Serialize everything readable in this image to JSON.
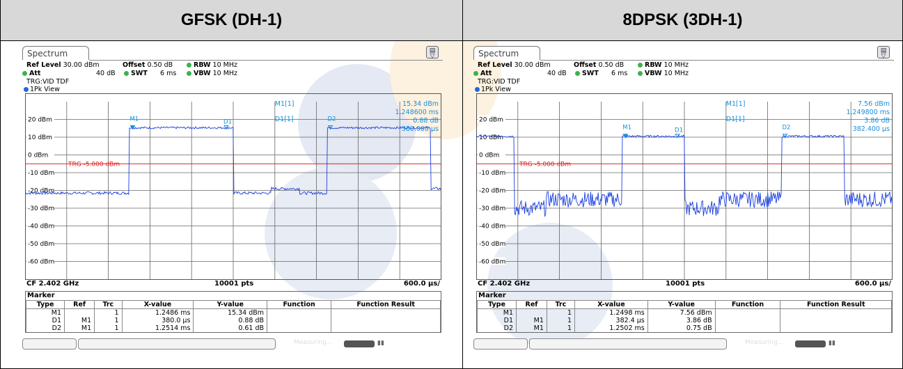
{
  "headers": [
    "GFSK (DH-1)",
    "8DPSK (3DH-1)"
  ],
  "colors": {
    "trace": "#1a3fe0",
    "marker": "#1a8fd8",
    "trigger": "#e02020",
    "header_bg": "#d8d8d8"
  },
  "panels": [
    {
      "tab": "Spectrum",
      "ref_label": "Ref Level",
      "ref_value": "30.00 dBm",
      "offset_label": "Offset",
      "offset_value": "0.50 dB",
      "rbw_label": "RBW",
      "rbw_value": "10 MHz",
      "att_label": "Att",
      "att_value": "40 dB",
      "swt_label": "SWT",
      "swt_value": "6 ms",
      "vbw_label": "VBW",
      "vbw_value": "10 MHz",
      "trg": "TRG:VID TDF",
      "view": "1Pk View",
      "y_labels": [
        "20 dBm",
        "10 dBm",
        "0 dBm",
        "-10 dBm",
        "-20 dBm",
        "-30 dBm",
        "-40 dBm",
        "-50 dBm",
        "-60 dBm"
      ],
      "trg_line": "TRG -5.000 dBm",
      "m1_label": "M1[1]",
      "m1_val": "15.34 dBm",
      "m1_time": "1.248600 ms",
      "d1_label": "D1[1]",
      "d1_val": "0.88 dB",
      "d1_time": "380.000 µs",
      "markers": [
        "M1",
        "D1",
        "D2"
      ],
      "cf": "CF 2.402 GHz",
      "pts": "10001 pts",
      "span": "600.0 µs/",
      "marker_title": "Marker",
      "cols": [
        "Type",
        "Ref",
        "Trc",
        "X-value",
        "Y-value",
        "Function",
        "Function Result"
      ],
      "rows": [
        [
          "M1",
          "",
          "1",
          "1.2486 ms",
          "15.34 dBm",
          "",
          ""
        ],
        [
          "D1",
          "M1",
          "1",
          "380.0 µs",
          "0.88 dB",
          "",
          ""
        ],
        [
          "D2",
          "M1",
          "1",
          "1.2514 ms",
          "0.61 dB",
          "",
          ""
        ]
      ],
      "trace": {
        "high": 15.3,
        "low": -21.5,
        "noise": 0.8,
        "pulses": [
          [
            1.5,
            3.0
          ],
          [
            4.35,
            5.85
          ],
          [
            7.3,
            8.8
          ],
          [
            9.6,
            11.1
          ]
        ],
        "bumps": [
          [
            3.55,
            3.95
          ],
          [
            5.5,
            6.0
          ],
          [
            7.75,
            8.25
          ],
          [
            10.7,
            11.1
          ]
        ],
        "bump_level": -19
      }
    },
    {
      "tab": "Spectrum",
      "ref_label": "Ref Level",
      "ref_value": "30.00 dBm",
      "offset_label": "Offset",
      "offset_value": "0.50 dB",
      "rbw_label": "RBW",
      "rbw_value": "10 MHz",
      "att_label": "Att",
      "att_value": "40 dB",
      "swt_label": "SWT",
      "swt_value": "6 ms",
      "vbw_label": "VBW",
      "vbw_value": "10 MHz",
      "trg": "TRG:VID TDF",
      "view": "1Pk View",
      "y_labels": [
        "20 dBm",
        "10 dBm",
        "0 dBm",
        "-10 dBm",
        "-20 dBm",
        "-30 dBm",
        "-40 dBm",
        "-50 dBm",
        "-60 dBm"
      ],
      "trg_line": "TRG -5.000 dBm",
      "m1_label": "M1[1]",
      "m1_val": "7.56 dBm",
      "m1_time": "1.249800 ms",
      "d1_label": "D1[1]",
      "d1_val": "3.86 dB",
      "d1_time": "382.400 µs",
      "markers": [
        "M1",
        "D1",
        "D2"
      ],
      "cf": "CF 2.402 GHz",
      "pts": "10001 pts",
      "span": "600.0 µs/",
      "marker_title": "Marker",
      "cols": [
        "Type",
        "Ref",
        "Trc",
        "X-value",
        "Y-value",
        "Function",
        "Function Result"
      ],
      "rows": [
        [
          "M1",
          "",
          "1",
          "1.2498 ms",
          "7.56 dBm",
          "",
          ""
        ],
        [
          "D1",
          "M1",
          "1",
          "382.4 µs",
          "3.86 dB",
          "",
          ""
        ],
        [
          "D2",
          "M1",
          "1",
          "1.2502 ms",
          "0.75 dB",
          "",
          ""
        ]
      ],
      "trace": {
        "high": 10.5,
        "low": -30,
        "noise": 4.5,
        "pulses": [
          [
            0,
            0.55
          ],
          [
            2.1,
            3.0
          ],
          [
            4.4,
            5.3
          ],
          [
            6.65,
            7.45
          ],
          [
            9.0,
            9.85
          ]
        ],
        "bumps": [
          [
            1.0,
            2.2
          ],
          [
            3.5,
            4.4
          ],
          [
            5.3,
            6.6
          ],
          [
            8.0,
            9.0
          ]
        ],
        "bump_level": -25
      }
    }
  ],
  "status_text": "Measuring..."
}
